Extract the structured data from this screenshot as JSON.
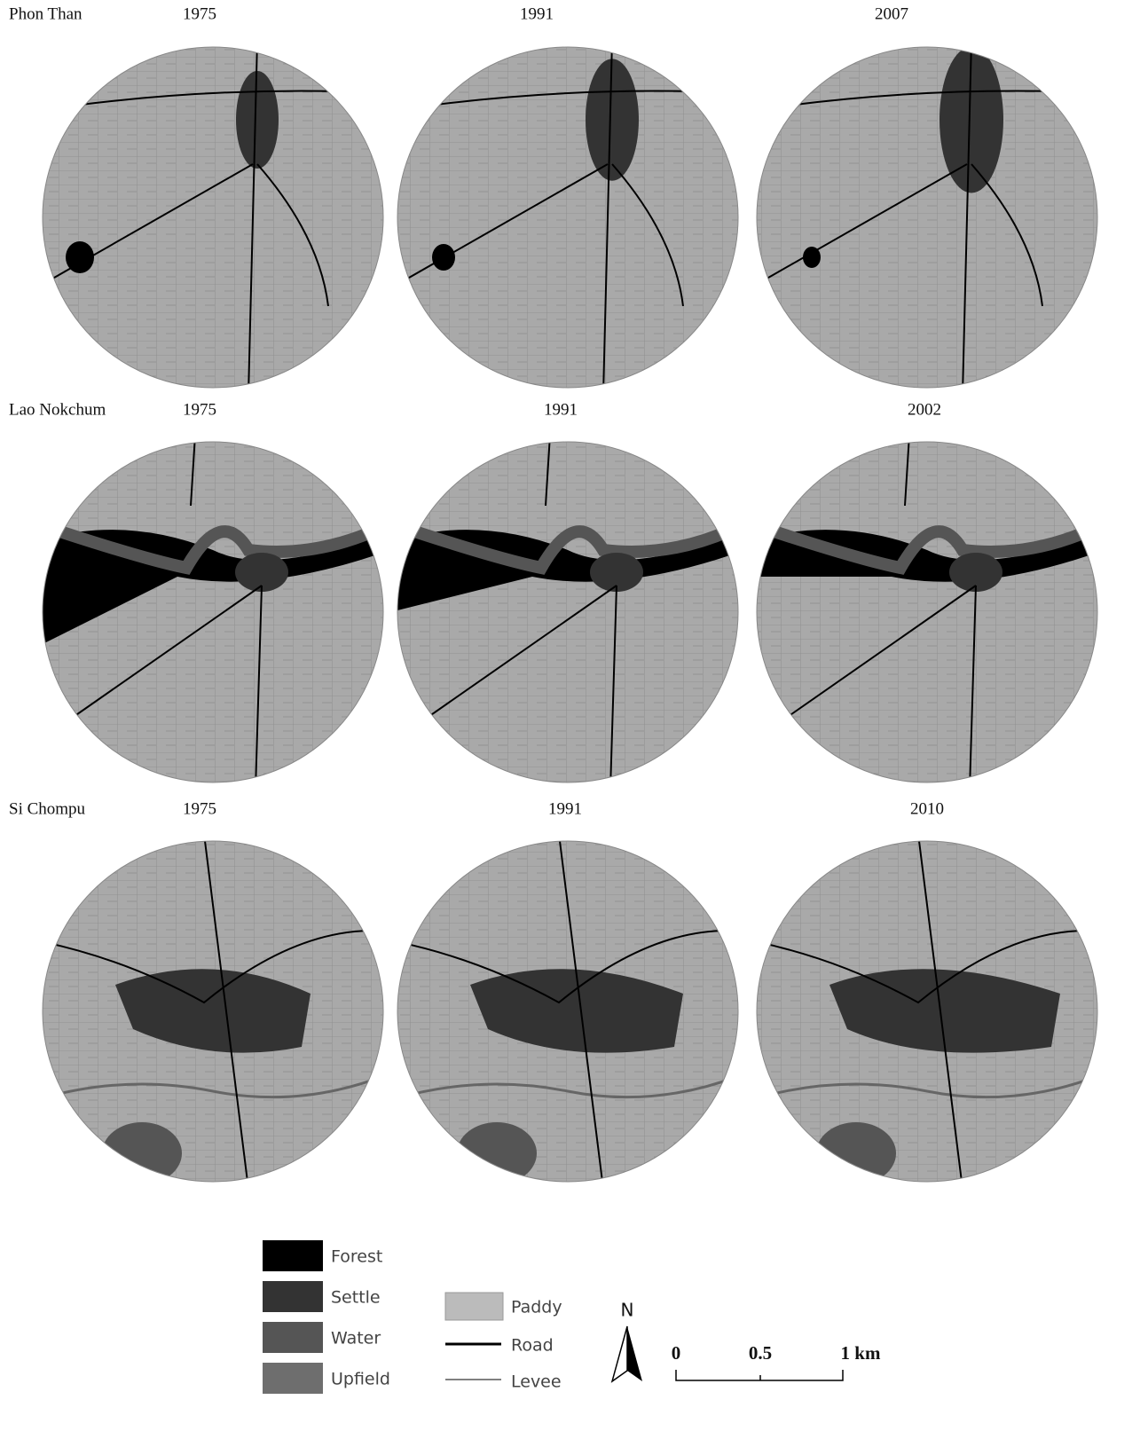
{
  "rows": [
    {
      "site": "Phon Than",
      "years": [
        "1975",
        "1991",
        "2007"
      ]
    },
    {
      "site": "Lao Nokchum",
      "years": [
        "1975",
        "1991",
        "2002"
      ]
    },
    {
      "site": "Si Chompu",
      "years": [
        "1975",
        "1991",
        "2010"
      ]
    }
  ],
  "legend": {
    "classes": [
      "Forest",
      "Settle",
      "Water",
      "Upfield"
    ],
    "paddy": "Paddy",
    "road": "Road",
    "levee": "Levee"
  },
  "north": "N",
  "scale": [
    "0",
    "0.5",
    "1 km"
  ]
}
